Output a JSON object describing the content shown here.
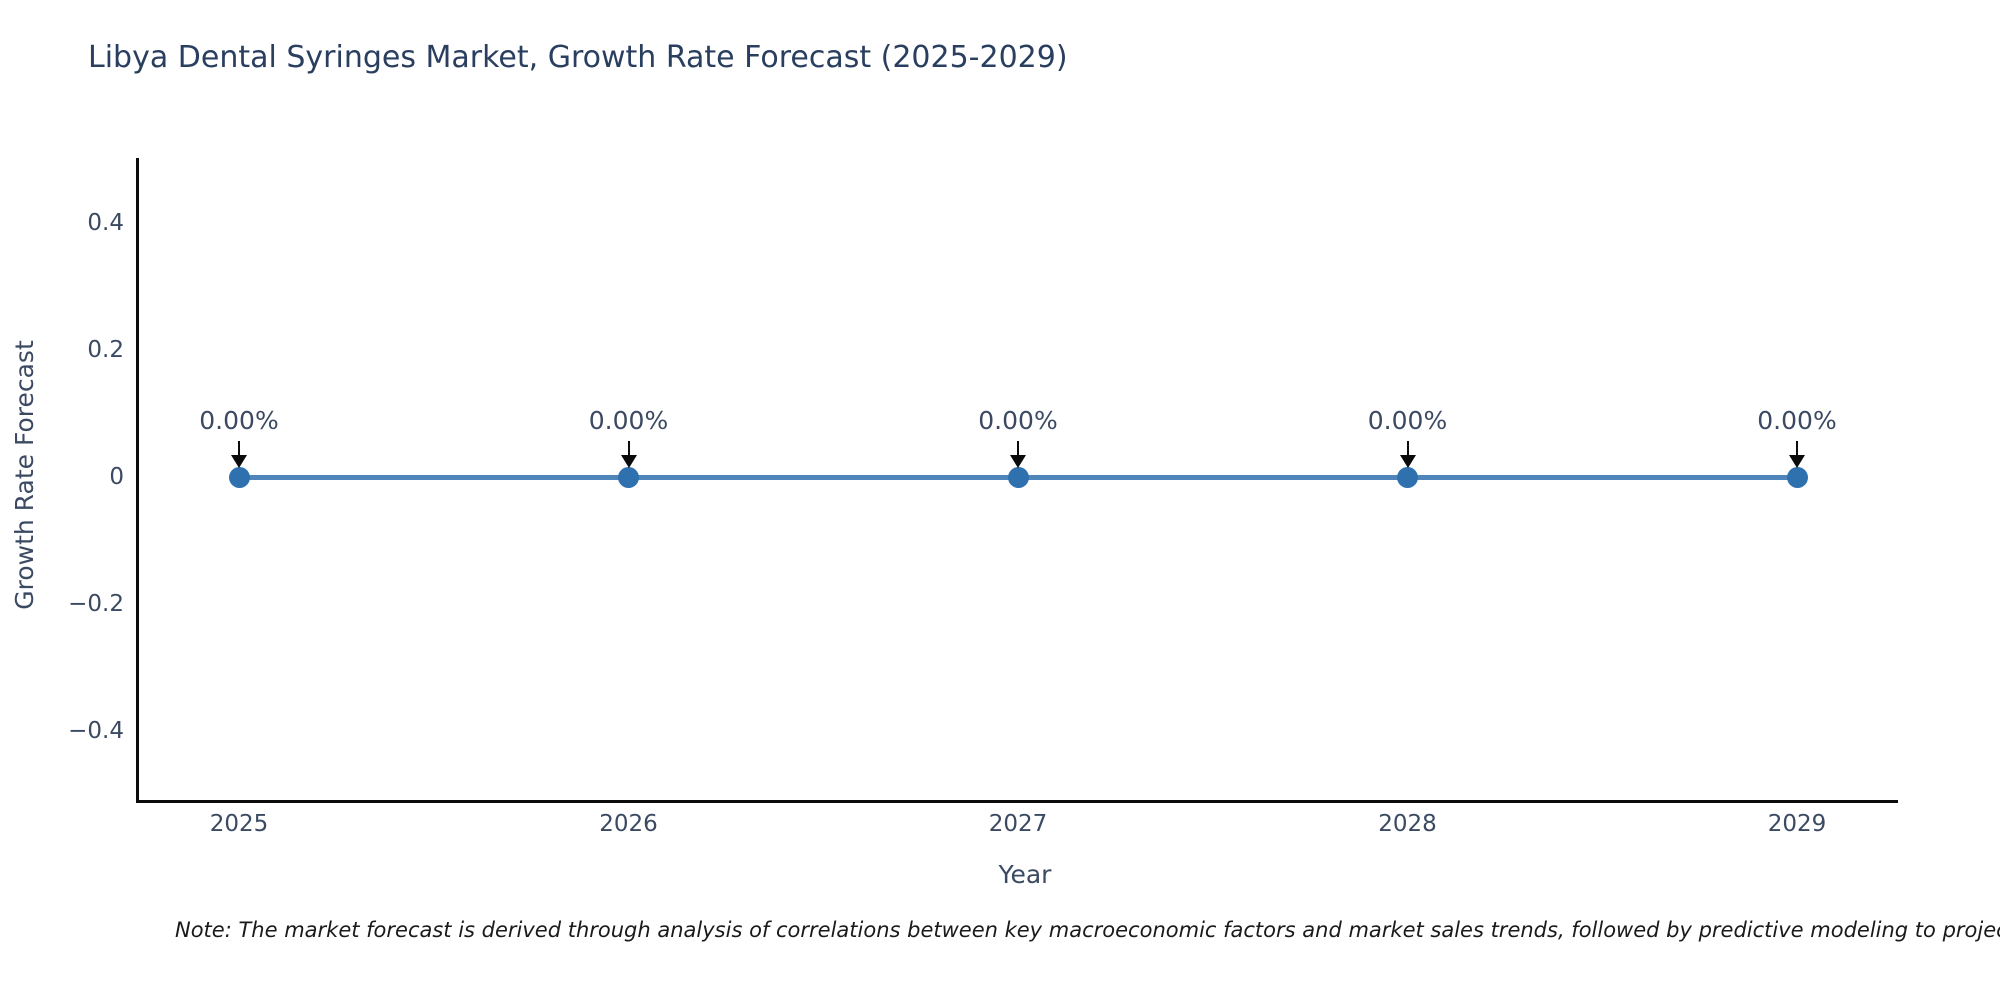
{
  "title": "Libya Dental Syringes Market, Growth Rate Forecast (2025-2029)",
  "note": "Note: The market forecast is derived through analysis of correlations between key macroeconomic factors and market sales trends, followed by predictive modeling to project future sa",
  "chart_data": {
    "type": "line",
    "title": "Libya Dental Syringes Market, Growth Rate Forecast (2025-2029)",
    "xlabel": "Year",
    "ylabel": "Growth Rate Forecast",
    "x": [
      2025,
      2026,
      2027,
      2028,
      2029
    ],
    "series": [
      {
        "name": "Growth Rate Forecast",
        "values": [
          0,
          0,
          0,
          0,
          0
        ]
      }
    ],
    "point_labels": [
      "0.00%",
      "0.00%",
      "0.00%",
      "0.00%",
      "0.00%"
    ],
    "xtick_labels": [
      "2025",
      "2026",
      "2027",
      "2028",
      "2029"
    ],
    "yticks": [
      0.4,
      0.2,
      0,
      -0.2,
      -0.4
    ],
    "ytick_labels": [
      "0.4",
      "0.2",
      "0",
      "−0.2",
      "−0.4"
    ],
    "ylim": [
      -0.5,
      0.5
    ],
    "grid": false,
    "legend": false,
    "annotations_have_arrows": true,
    "colors": {
      "line": "#4e86bc",
      "marker": "#2e71ae",
      "axis": "#0b0b0b",
      "tick_text": "#3b4a62",
      "title_text": "#2a3f5f",
      "arrow": "#0b0b0b"
    }
  }
}
